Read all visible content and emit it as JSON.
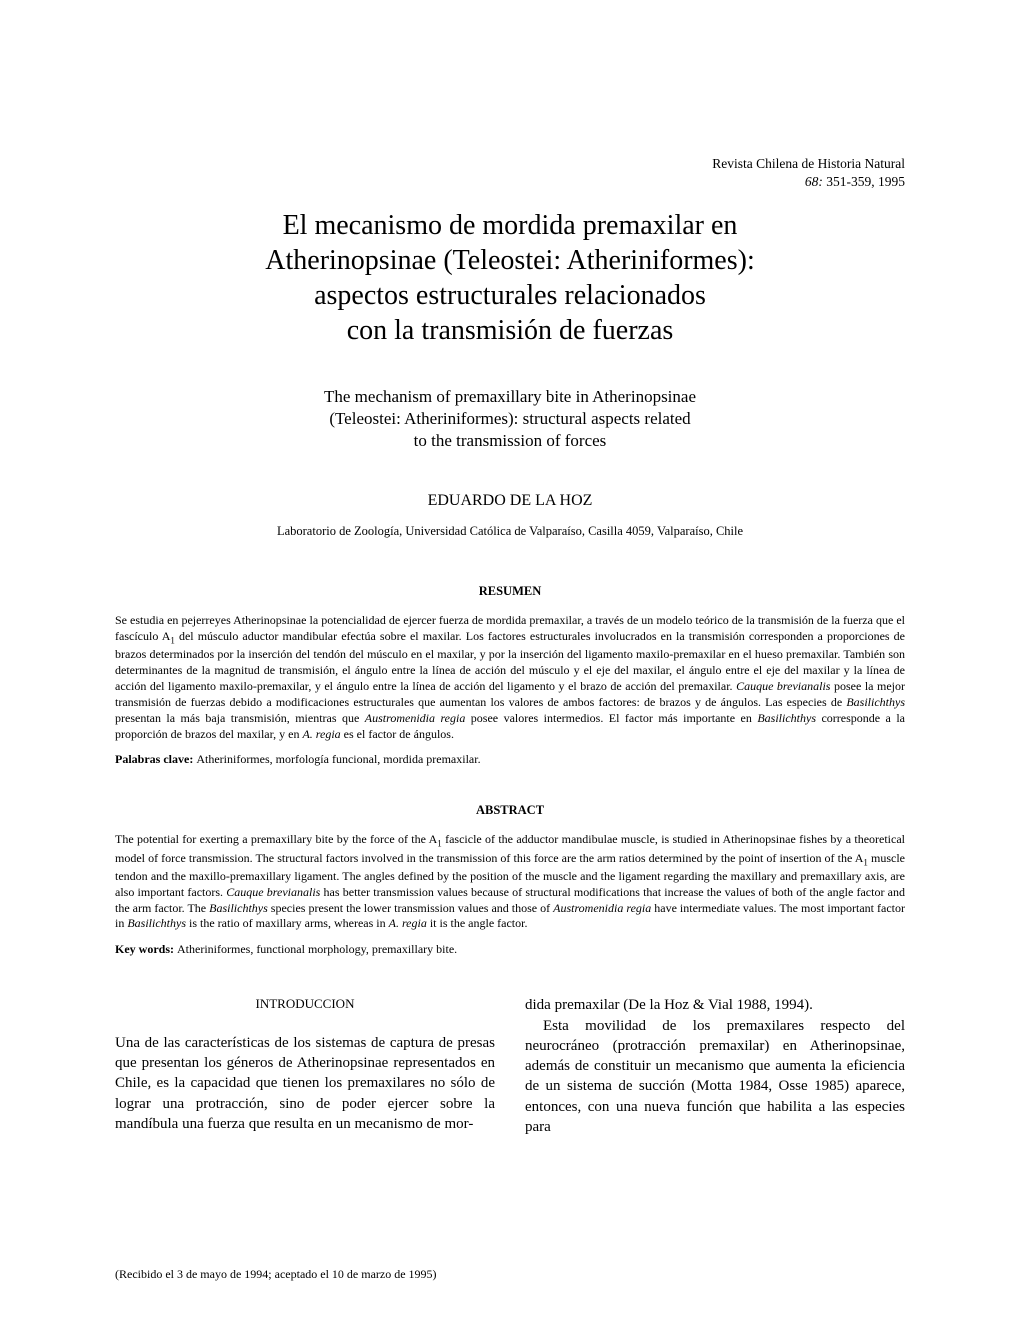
{
  "journal": {
    "name": "Revista Chilena de Historia Natural",
    "volume": "68:",
    "pages": " 351-359, 1995"
  },
  "title_main_line1": "El mecanismo de mordida premaxilar en",
  "title_main_line2": "Atherinopsinae (Teleostei: Atheriniformes):",
  "title_main_line3": "aspectos estructurales relacionados",
  "title_main_line4": "con la transmisión de fuerzas",
  "title_en_line1": "The mechanism of premaxillary bite in Atherinopsinae",
  "title_en_line2": "(Teleostei: Atheriniformes): structural aspects related",
  "title_en_line3": "to the transmission of forces",
  "author": "EDUARDO DE LA HOZ",
  "affiliation": "Laboratorio de Zoología, Universidad Católica de Valparaíso, Casilla 4059, Valparaíso, Chile",
  "resumen_heading": "RESUMEN",
  "resumen_body_p1": "Se estudia en pejerreyes Atherinopsinae la potencialidad de ejercer fuerza de mordida premaxilar, a través de un modelo teórico de la transmisión de la fuerza que el fascículo A",
  "resumen_body_p2": " del músculo aductor mandibular efectúa sobre el maxilar. Los factores estructurales involucrados en la transmisión corresponden a proporciones de brazos determinados por la inserción del tendón del músculo en el maxilar, y por la inserción del ligamento maxilo-premaxilar en el hueso premaxilar. También son determinantes de la magnitud de transmisión, el ángulo entre la línea de acción del músculo y el eje del maxilar, el ángulo entre el eje del maxilar y la línea de acción del ligamento maxilo-premaxilar, y el ángulo entre la línea de acción del ligamento y el brazo de acción del premaxilar. ",
  "resumen_body_p3": " posee la mejor transmisión de fuerzas debido a modificaciones estructurales que aumentan los valores de ambos factores: de brazos y de ángulos. Las especies de ",
  "resumen_body_p4": " presentan la más baja transmisión, mientras que ",
  "resumen_body_p5": " posee valores intermedios. El factor más importante en ",
  "resumen_body_p6": " corresponde a la proporción de brazos del maxilar, y en ",
  "resumen_body_p7": " es el factor de ángulos.",
  "species": {
    "cauque": "Cauque brevianalis",
    "basilichthys": "Basilichthys",
    "austromenidia": "Austromenidia regia",
    "aregia": "A. regia"
  },
  "palabras_label": "Palabras clave: ",
  "palabras_value": "Atheriniformes, morfología funcional, mordida premaxilar.",
  "abstract_heading": "ABSTRACT",
  "abstract_body_p1": "The potential for exerting a premaxillary bite by the force of the A",
  "abstract_body_p2": " fascicle of the adductor mandibulae muscle, is studied in Atherinopsinae fishes by a theoretical model of force transmission. The structural factors involved in the transmission of this force are the arm ratios determined by the point of insertion of the A",
  "abstract_body_p3": " muscle tendon and the maxillo-premaxillary ligament. The angles defined by the position of the muscle and the ligament regarding the maxillary and premaxillary axis, are also important factors. ",
  "abstract_body_p4": " has better transmission values because of structural modifications that increase the values of both of the angle factor and the arm factor. The ",
  "abstract_body_p5": " species present the lower transmission values and those of ",
  "abstract_body_p6": " have intermediate values. The most important factor in ",
  "abstract_body_p7": " is the ratio of maxillary arms, whereas in ",
  "abstract_body_p8": " it is the angle factor.",
  "keywords_label": "Key words: ",
  "keywords_value": "Atheriniformes, functional morphology, premaxillary bite.",
  "intro_heading": "INTRODUCCION",
  "intro_left": "Una de las características de los sistemas de captura de presas que presentan los géneros de Atherinopsinae representados en Chile, es la capacidad que tienen los premaxilares no sólo de lograr una protracción, sino de poder ejercer sobre la mandíbula una fuerza que resulta en un mecanismo de mor-",
  "intro_right_p1": "dida premaxilar (De la Hoz & Vial 1988, 1994).",
  "intro_right_p2": "Esta movilidad de los premaxilares respecto del neurocráneo (protracción premaxilar) en Atherinopsinae, además de constituir un mecanismo que aumenta la eficiencia de un sistema de succión (Motta 1984, Osse 1985) aparece, entonces, con una nueva función que habilita a las especies para",
  "received": "(Recibido el 3 de mayo de 1994; aceptado el 10 de marzo de 1995)",
  "sub_one": "1"
}
